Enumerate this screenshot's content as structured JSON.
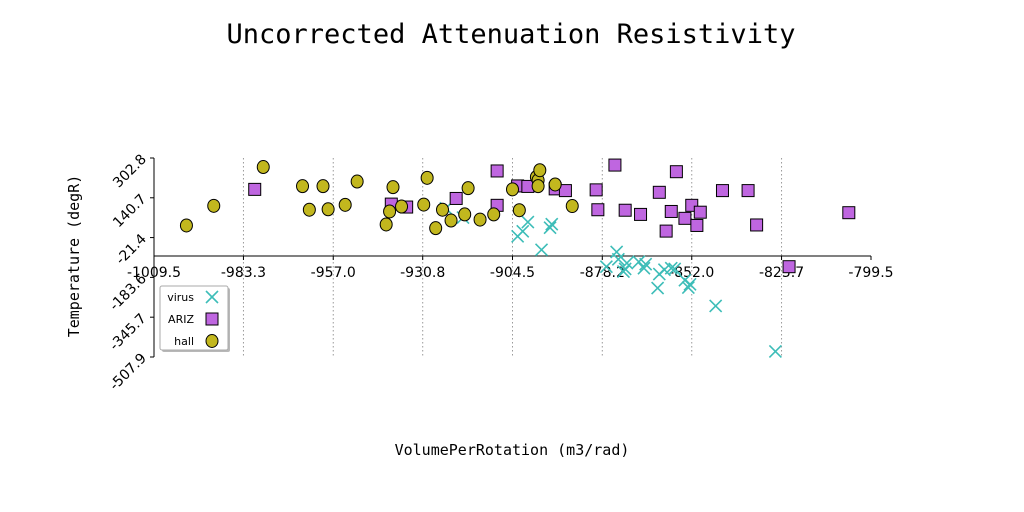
{
  "chart_data": {
    "type": "scatter",
    "title": "Uncorrected Attenuation Resistivity",
    "xlabel": "VolumePerRotation (m3/rad)",
    "ylabel": "Temperature (degR)",
    "xlim": [
      -1009.5,
      -799.5
    ],
    "ylim": [
      -507.9,
      302.8
    ],
    "x_ticks": [
      "-1009.5",
      "-983.3",
      "-957.0",
      "-930.8",
      "-904.5",
      "-878.2",
      "-852.0",
      "-825.7",
      "-799.5"
    ],
    "y_ticks": [
      "-507.9",
      "-345.7",
      "-183.6",
      "-21.4",
      "140.7",
      "302.8"
    ],
    "x_tick_values": [
      -1009.5,
      -983.3,
      -957.0,
      -930.8,
      -904.5,
      -878.2,
      -852.0,
      -825.7,
      -799.5
    ],
    "y_tick_values": [
      -507.9,
      -345.7,
      -183.6,
      -21.4,
      140.7,
      302.8
    ],
    "x_grid": true,
    "y_grid": false,
    "legend_position": "lower-left",
    "series": [
      {
        "name": "virus",
        "marker": "x",
        "color": "#3dbdb8",
        "points": [
          [
            -924.0,
            98
          ],
          [
            -919.0,
            60
          ],
          [
            -903.0,
            -16
          ],
          [
            -901.5,
            4
          ],
          [
            -900.0,
            42
          ],
          [
            -896.0,
            -71
          ],
          [
            -893.5,
            19
          ],
          [
            -893.0,
            33
          ],
          [
            -877.0,
            -140
          ],
          [
            -874.0,
            -80
          ],
          [
            -873.5,
            -110
          ],
          [
            -872.0,
            -160
          ],
          [
            -871.5,
            -149
          ],
          [
            -871.0,
            -125
          ],
          [
            -867.5,
            -120
          ],
          [
            -866.0,
            -146
          ],
          [
            -865.5,
            -130
          ],
          [
            -862.0,
            -227
          ],
          [
            -861.5,
            -170
          ],
          [
            -860.0,
            -152
          ],
          [
            -858.0,
            -146
          ],
          [
            -857.0,
            -149
          ],
          [
            -854.0,
            -195
          ],
          [
            -853.0,
            -225
          ],
          [
            -852.5,
            -212
          ],
          [
            -845.0,
            -300
          ],
          [
            -827.5,
            -485
          ]
        ]
      },
      {
        "name": "ARIZ",
        "marker": "square",
        "color": "#bf66e0",
        "points": [
          [
            -980.0,
            175
          ],
          [
            -940.0,
            115
          ],
          [
            -935.5,
            103
          ],
          [
            -921.0,
            138
          ],
          [
            -909.0,
            250
          ],
          [
            -909.0,
            110
          ],
          [
            -903.0,
            189
          ],
          [
            -900.0,
            187
          ],
          [
            -892.0,
            177
          ],
          [
            -889.0,
            170
          ],
          [
            -880.0,
            173
          ],
          [
            -879.5,
            92
          ],
          [
            -874.5,
            274
          ],
          [
            -871.5,
            90
          ],
          [
            -867.0,
            73
          ],
          [
            -861.5,
            163
          ],
          [
            -859.5,
            5
          ],
          [
            -858.0,
            85
          ],
          [
            -856.5,
            247
          ],
          [
            -854.0,
            57
          ],
          [
            -852.0,
            110
          ],
          [
            -850.5,
            28
          ],
          [
            -849.5,
            82
          ],
          [
            -843.0,
            170
          ],
          [
            -835.5,
            170
          ],
          [
            -833.0,
            30
          ],
          [
            -823.5,
            -140
          ],
          [
            -806.0,
            80
          ]
        ]
      },
      {
        "name": "hall",
        "marker": "circle",
        "color": "#c2b71e",
        "points": [
          [
            -1000.0,
            28
          ],
          [
            -992.0,
            108
          ],
          [
            -977.5,
            266
          ],
          [
            -966.0,
            188
          ],
          [
            -964.0,
            92
          ],
          [
            -960.0,
            188
          ],
          [
            -958.5,
            94
          ],
          [
            -953.5,
            112
          ],
          [
            -950.0,
            207
          ],
          [
            -941.5,
            32
          ],
          [
            -940.5,
            85
          ],
          [
            -939.5,
            184
          ],
          [
            -937.0,
            105
          ],
          [
            -930.5,
            113
          ],
          [
            -929.5,
            222
          ],
          [
            -927.0,
            17
          ],
          [
            -925.0,
            92
          ],
          [
            -922.5,
            48
          ],
          [
            -918.5,
            73
          ],
          [
            -917.5,
            180
          ],
          [
            -914.0,
            52
          ],
          [
            -910.0,
            73
          ],
          [
            -904.5,
            175
          ],
          [
            -902.5,
            90
          ],
          [
            -897.5,
            225
          ],
          [
            -897.0,
            212
          ],
          [
            -897.0,
            188
          ],
          [
            -896.5,
            253
          ],
          [
            -892.0,
            195
          ],
          [
            -887.0,
            107
          ]
        ]
      }
    ]
  }
}
